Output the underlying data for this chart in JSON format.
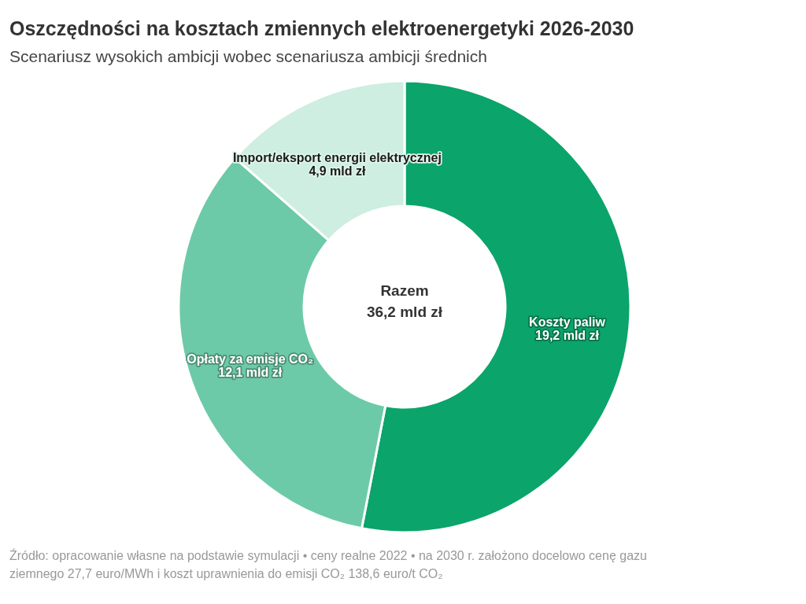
{
  "chart_data": {
    "type": "donut",
    "title": "Oszczędności na kosztach zmiennych elektroenergetyki 2026-2030",
    "subtitle": "Scenariusz wysokich ambicji wobec scenariusza ambicji średnich",
    "categories": [
      "Koszty paliw",
      "Opłaty za emisje CO₂",
      "Import/eksport energii elektrycznej"
    ],
    "values": [
      19.2,
      12.1,
      4.9
    ],
    "colors": [
      "#0ba46a",
      "#6ccaa8",
      "#cdeee0"
    ],
    "value_labels": [
      "19,2 mld zł",
      "12,1 mld zł",
      "4,9 mld zł"
    ],
    "annotations": [
      "Razem",
      "36,2 mld zł",
      "Źródło: opracowanie własne na podstawie symulacji • ceny realne 2022 • na 2030 r. założono docelowo cenę gazu ziemnego 27,7 euro/MWh i koszt uprawnienia do emisji CO₂ 138,6 euro/t CO₂"
    ]
  }
}
